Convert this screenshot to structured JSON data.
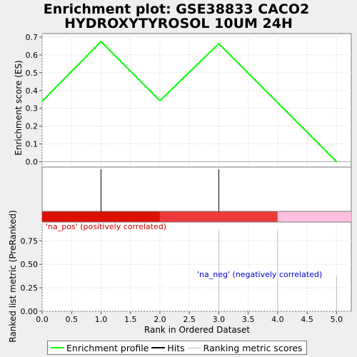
{
  "chart_data": {
    "title_lines": [
      "Enrichment plot: GSE38833 CACO2",
      "HYDROXYTYROSOL 10UM 24H"
    ],
    "xlabel": "Rank in Ordered Dataset",
    "xlim": [
      0,
      5.25
    ],
    "xticks": [
      "0.0",
      "0.5",
      "1.0",
      "1.5",
      "2.0",
      "2.5",
      "3.0",
      "3.5",
      "4.0",
      "4.5",
      "5.0"
    ],
    "enrichment": {
      "type": "line",
      "ylabel": "Enrichment score (ES)",
      "ylim": [
        -0.03,
        0.72
      ],
      "yticks": [
        "0.0",
        "0.1",
        "0.2",
        "0.3",
        "0.4",
        "0.5",
        "0.6",
        "0.7"
      ],
      "x": [
        0,
        1,
        2,
        3,
        5
      ],
      "y": [
        0.34,
        0.675,
        0.343,
        0.663,
        0.0
      ],
      "color": "#00ff00"
    },
    "hits": {
      "positions": [
        1,
        3
      ],
      "color": "#000000"
    },
    "ranking_bar": [
      {
        "from": 0,
        "to": 2,
        "color": "#dd1100"
      },
      {
        "from": 2,
        "to": 4,
        "color": "#ee3a3a"
      },
      {
        "from": 4,
        "to": 5.25,
        "color": "#ffc0e0"
      }
    ],
    "ranked_metric": {
      "type": "bar",
      "ylabel": "Ranked list metric (PreRanked)",
      "ylim": [
        0,
        0.95
      ],
      "yticks": [
        "0.00",
        "0.25",
        "0.50",
        "0.75"
      ],
      "x": [
        3,
        4,
        5
      ],
      "values": [
        0.86,
        0.86,
        0.38
      ],
      "color": "#bbbbbb"
    },
    "annotations": {
      "pos": {
        "text": "'na_pos' (positively correlated)",
        "color": "#cc0000"
      },
      "neg": {
        "text": "'na_neg' (negatively correlated)",
        "color": "#0000cc"
      }
    },
    "legend": {
      "entries": [
        {
          "name": "Enrichment profile",
          "color": "#00ff00"
        },
        {
          "name": "Hits",
          "color": "#000000"
        },
        {
          "name": "Ranking metric scores",
          "color": "#bbbbbb"
        }
      ]
    }
  }
}
